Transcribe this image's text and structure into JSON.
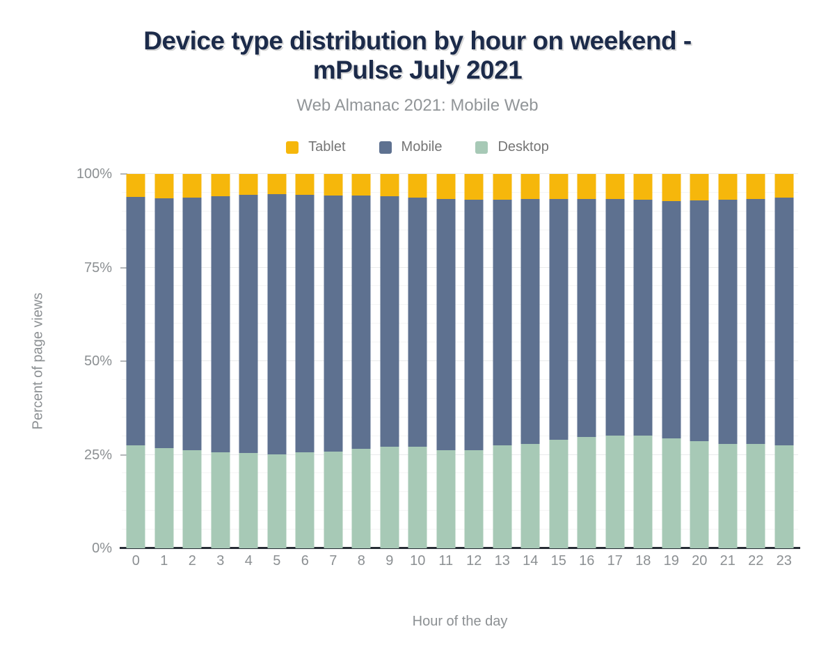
{
  "header": {
    "title_line1": "Device type distribution by hour on weekend -",
    "title_line2": "mPulse July 2021",
    "subtitle": "Web Almanac 2021: Mobile Web"
  },
  "chart_data": {
    "type": "bar",
    "stacked": true,
    "title": "Device type distribution by hour on weekend - mPulse July 2021",
    "subtitle": "Web Almanac 2021: Mobile Web",
    "xlabel": "Hour of the day",
    "ylabel": "Percent of page views",
    "x": [
      "0",
      "1",
      "2",
      "3",
      "4",
      "5",
      "6",
      "7",
      "8",
      "9",
      "10",
      "11",
      "12",
      "13",
      "14",
      "15",
      "16",
      "17",
      "18",
      "19",
      "20",
      "21",
      "22",
      "23"
    ],
    "ylim": [
      0,
      100
    ],
    "yticks": [
      {
        "label": "0%",
        "value": 0
      },
      {
        "label": "25%",
        "value": 25
      },
      {
        "label": "50%",
        "value": 50
      },
      {
        "label": "75%",
        "value": 75
      },
      {
        "label": "100%",
        "value": 100
      }
    ],
    "grid": {
      "minor_every": 5,
      "major_every": 25
    },
    "legend_position": "top",
    "stack_order_bottom_to_top": [
      "Desktop",
      "Mobile",
      "Tablet"
    ],
    "series": [
      {
        "name": "Tablet",
        "color": "#f6b70b",
        "values": [
          6.2,
          6.5,
          6.3,
          5.9,
          5.6,
          5.3,
          5.6,
          5.8,
          5.8,
          5.9,
          6.3,
          6.6,
          6.8,
          6.8,
          6.6,
          6.7,
          6.7,
          6.7,
          6.8,
          7.2,
          7.0,
          6.8,
          6.6,
          6.4
        ]
      },
      {
        "name": "Mobile",
        "color": "#5e7190",
        "values": [
          66.3,
          66.7,
          67.4,
          68.4,
          69.0,
          69.6,
          68.8,
          68.3,
          67.7,
          67.0,
          66.6,
          67.1,
          67.0,
          65.6,
          65.5,
          64.3,
          63.6,
          63.2,
          63.1,
          63.4,
          64.3,
          65.4,
          65.5,
          66.0
        ]
      },
      {
        "name": "Desktop",
        "color": "#a7c9b6",
        "values": [
          27.5,
          26.8,
          26.3,
          25.7,
          25.4,
          25.1,
          25.6,
          25.9,
          26.5,
          27.1,
          27.1,
          26.3,
          26.2,
          27.6,
          27.9,
          29.0,
          29.7,
          30.1,
          30.1,
          29.4,
          28.7,
          27.8,
          27.9,
          27.6
        ]
      }
    ]
  },
  "colors": {
    "title": "#1c2b4a",
    "subtitle": "#919598",
    "axis_text": "#8b8f92",
    "legend_text": "#757575",
    "axis_line": "#262c34",
    "gridline_major": "#e9eaeb",
    "gridline_minor": "#f4f5f5",
    "background": "#ffffff"
  }
}
